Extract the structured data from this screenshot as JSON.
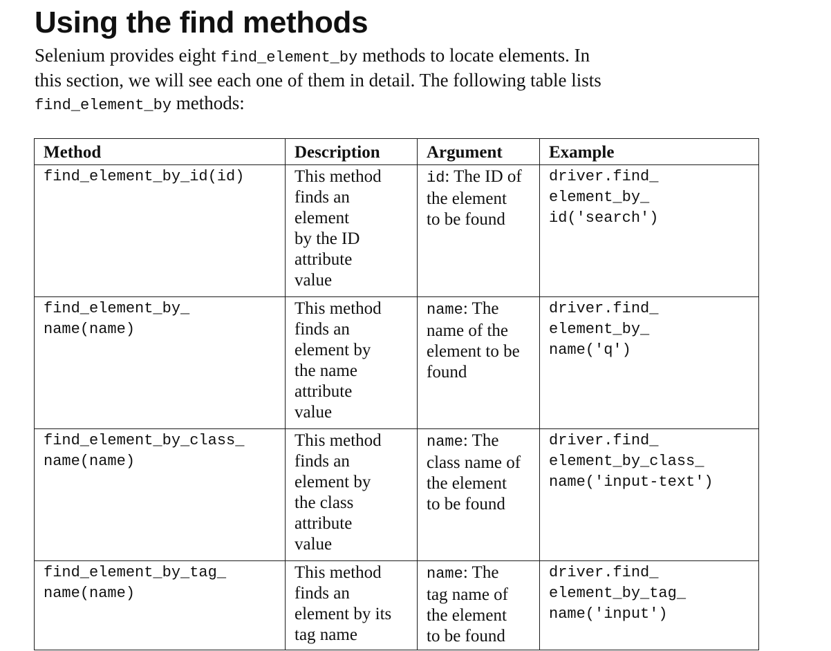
{
  "section": {
    "title": "Using the find methods"
  },
  "intro": {
    "line1_text": "Selenium provides eight ",
    "line1_code": "find_element_by",
    "line1_end": " methods to locate elements. In",
    "line2": "this section, we will see each one of them in detail. The following table lists",
    "line3_code": "find_element_by",
    "line3_end": " methods:"
  },
  "table": {
    "headers": [
      "Method",
      "Description",
      "Argument",
      "Example"
    ],
    "rows": [
      {
        "method": "find_element_by_id(id)",
        "description": "This method\nfinds an\nelement\nby the ID\nattribute\nvalue",
        "argument_name": "id",
        "argument_text": ": The ID of\nthe element\nto be found",
        "example": "driver.find_\nelement_by_\nid('search')"
      },
      {
        "method": "find_element_by_\nname(name)",
        "description": "This method\nfinds an\nelement by\nthe name\nattribute\nvalue",
        "argument_name": "name",
        "argument_text": ": The\nname of the\nelement to be\nfound",
        "example": "driver.find_\nelement_by_\nname('q')"
      },
      {
        "method": "find_element_by_class_\nname(name)",
        "description": "This method\nfinds an\nelement by\nthe class\nattribute\nvalue",
        "argument_name": "name",
        "argument_text": ": The\nclass name of\nthe element\nto be found",
        "example": "driver.find_\nelement_by_class_\nname('input-text')"
      },
      {
        "method": "find_element_by_tag_\nname(name)",
        "description": "This method\nfinds an\nelement by its\ntag name",
        "argument_name": "name",
        "argument_text": ": The\ntag name of\nthe element\nto be found",
        "example": "driver.find_\nelement_by_tag_\nname('input')"
      }
    ]
  }
}
